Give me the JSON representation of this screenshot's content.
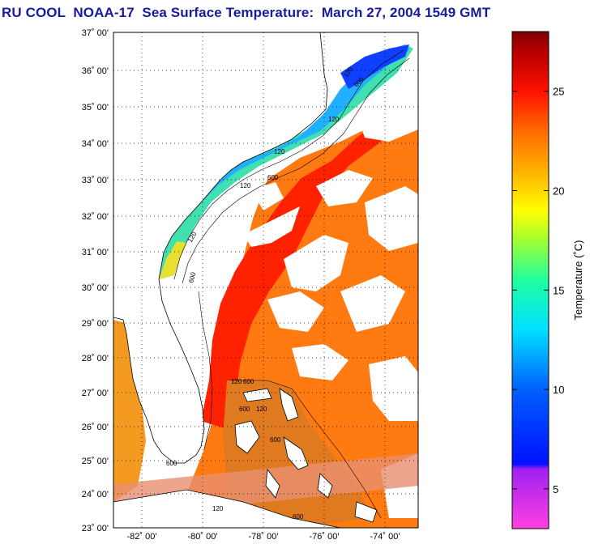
{
  "title": "RU COOL  NOAA-17  Sea Surface Temperature:  March 27, 2004 1549 GMT",
  "map": {
    "lat_labels": [
      "37˚ 00'",
      "36˚ 00'",
      "35˚ 00'",
      "34˚ 00'",
      "33˚ 00'",
      "32˚ 00'",
      "31˚ 00'",
      "30˚ 00'",
      "29˚ 00'",
      "28˚ 00'",
      "27˚ 00'",
      "26˚ 00'",
      "25˚ 00'",
      "24˚ 00'",
      "23˚ 00'"
    ],
    "lon_labels": [
      "-82˚ 00'",
      "-80˚ 00'",
      "-78˚ 00'",
      "-76˚ 00'",
      "-74˚ 00'"
    ],
    "isobath_labels": [
      "120",
      "600"
    ]
  },
  "colorbar": {
    "title": "Temperature (˚C)",
    "tick_labels": [
      "25",
      "20",
      "15",
      "10",
      "5"
    ],
    "ticks": [
      25,
      20,
      15,
      10,
      5
    ],
    "min": 3,
    "max": 28
  }
}
